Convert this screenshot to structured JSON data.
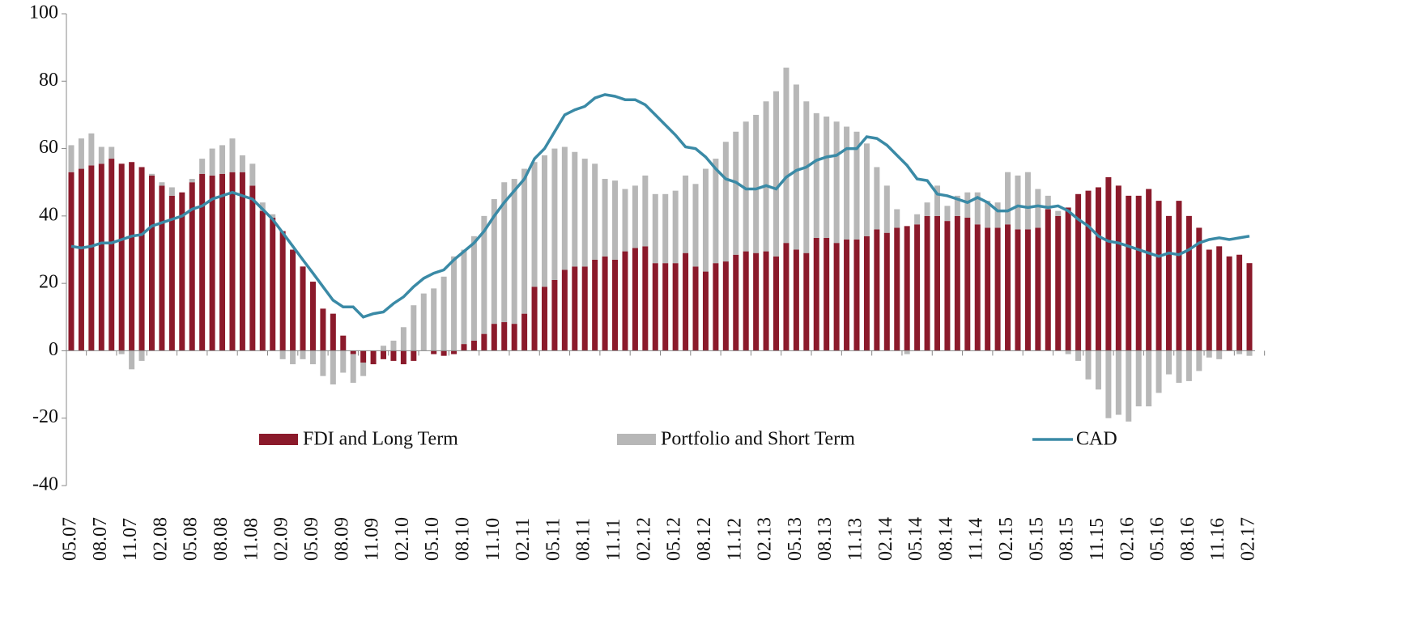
{
  "chart_data": {
    "type": "bar",
    "stacked": true,
    "categories": [
      "05.07",
      null,
      null,
      "08.07",
      null,
      null,
      "11.07",
      null,
      null,
      "02.08",
      null,
      null,
      "05.08",
      null,
      null,
      "08.08",
      null,
      null,
      "11.08",
      null,
      null,
      "02.09",
      null,
      null,
      "05.09",
      null,
      null,
      "08.09",
      null,
      null,
      "11.09",
      null,
      null,
      "02.10",
      null,
      null,
      "05.10",
      null,
      null,
      "08.10",
      null,
      null,
      "11.10",
      null,
      null,
      "02.11",
      null,
      null,
      "05.11",
      null,
      null,
      "08.11",
      null,
      null,
      "11.11",
      null,
      null,
      "02.12",
      null,
      null,
      "05.12",
      null,
      null,
      "08.12",
      null,
      null,
      "11.12",
      null,
      null,
      "02.13",
      null,
      null,
      "05.13",
      null,
      null,
      "08.13",
      null,
      null,
      "11.13",
      null,
      null,
      "02.14",
      null,
      null,
      "05.14",
      null,
      null,
      "08.14",
      null,
      null,
      "11.14",
      null,
      null,
      "02.15",
      null,
      null,
      "05.15",
      null,
      null,
      "08.15",
      null,
      null,
      "11.15",
      null,
      null,
      "02.16",
      null,
      null,
      "05.16",
      null,
      null,
      "08.16",
      null,
      null,
      "11.16",
      null,
      null,
      "02.17"
    ],
    "series": [
      {
        "name": "FDI and Long Term",
        "type": "bar",
        "color": "#8b1a2b",
        "values": [
          53,
          54,
          55,
          55.5,
          57,
          55.5,
          56,
          54.5,
          52,
          49,
          46,
          47,
          50,
          52.5,
          52,
          52.5,
          53,
          53,
          49,
          41.5,
          39.5,
          35.5,
          30,
          25,
          20.5,
          12.5,
          11,
          4.5,
          -1,
          -3.5,
          -4,
          -2.5,
          -3,
          -4,
          -3,
          0,
          -1,
          -1.5,
          -1,
          2,
          3,
          5,
          8,
          8.5,
          8,
          11,
          19,
          19,
          21,
          24,
          25,
          25,
          27,
          28,
          27,
          29.5,
          30.5,
          31,
          26,
          26,
          26,
          29,
          25,
          23.5,
          26,
          26.5,
          28.5,
          29.5,
          29,
          29.5,
          28,
          32,
          30,
          29,
          33.5,
          33.5,
          32,
          33,
          33,
          34,
          36,
          35,
          36.5,
          37,
          37.5,
          40,
          40,
          38.5,
          40,
          39.5,
          37.5,
          36.5,
          36.5,
          37.5,
          36,
          36,
          36.5,
          42,
          40,
          42.5,
          46.5,
          47.5,
          48.5,
          51.5,
          49,
          46,
          46,
          48,
          44.5,
          40,
          44.5,
          40,
          36.5,
          30,
          31,
          28,
          28.5,
          26
        ]
      },
      {
        "name": "Portfolio and Short Term",
        "type": "bar",
        "color": "#b7b7b7",
        "values": [
          8,
          9,
          9.5,
          5,
          3.5,
          -1,
          -5.5,
          -3,
          0.5,
          1,
          2.5,
          0,
          1,
          4.5,
          8,
          8.5,
          10,
          5,
          6.5,
          2.5,
          1,
          -2.5,
          -4,
          -2.5,
          -4,
          -7.5,
          -10,
          -6.5,
          -8.5,
          -4,
          0,
          1.5,
          3,
          7,
          13.5,
          17,
          18.5,
          22,
          28,
          28,
          31,
          35,
          37,
          41.5,
          43,
          43,
          37,
          39,
          39,
          36.5,
          34,
          32,
          28.5,
          23,
          23.5,
          18.5,
          18.5,
          21,
          20.5,
          20.5,
          21.5,
          23,
          24.5,
          30.5,
          31,
          35.5,
          36.5,
          38.5,
          41,
          44.5,
          49,
          52,
          49,
          45,
          37,
          36,
          36,
          33.5,
          32,
          27.5,
          18.5,
          14,
          5.5,
          -1,
          3,
          4,
          9,
          4.5,
          6,
          7.5,
          9.5,
          8,
          7.5,
          15.5,
          16,
          17,
          11.5,
          4,
          1.5,
          -1,
          -3,
          -8.5,
          -11.5,
          -20,
          -19,
          -21,
          -16.5,
          -16.5,
          -12.5,
          -7,
          -9.5,
          -9,
          -6,
          -2,
          -2.5,
          0,
          -1,
          -1.5
        ]
      },
      {
        "name": "CAD",
        "type": "line",
        "color": "#3a8aa6",
        "values": [
          31,
          30.5,
          31,
          32,
          32,
          33,
          34,
          34.5,
          37,
          38,
          39,
          40,
          42,
          43,
          45,
          46,
          47,
          46,
          45,
          42,
          39,
          35,
          31,
          27,
          23,
          19,
          15,
          13,
          13,
          10,
          11,
          11.5,
          14,
          16,
          19,
          21.5,
          23,
          24,
          27,
          29.5,
          32,
          35.5,
          40,
          44,
          47.5,
          51,
          57,
          60,
          65,
          70,
          71.5,
          72.5,
          75,
          76,
          75.5,
          74.5,
          74.5,
          73,
          70,
          67,
          64,
          60.5,
          60,
          57.5,
          54,
          51,
          50,
          48,
          48,
          49,
          48,
          51.5,
          53.5,
          54.5,
          56.5,
          57.5,
          58,
          60,
          60,
          63.5,
          63,
          61,
          58,
          55,
          51,
          50.5,
          46.5,
          46,
          45,
          44,
          45.5,
          44,
          41.5,
          41.5,
          43,
          42.5,
          43,
          42.5,
          43,
          41.5,
          39,
          37,
          34,
          32.5,
          32,
          31,
          30,
          29,
          28,
          29,
          28.5,
          30,
          32,
          33,
          33.5,
          33,
          33.5,
          34
        ]
      }
    ],
    "ylim": [
      -40,
      100
    ],
    "yticks": [
      -40,
      -20,
      0,
      20,
      40,
      60,
      80,
      100
    ],
    "grid": false,
    "legend": "lower-center"
  }
}
